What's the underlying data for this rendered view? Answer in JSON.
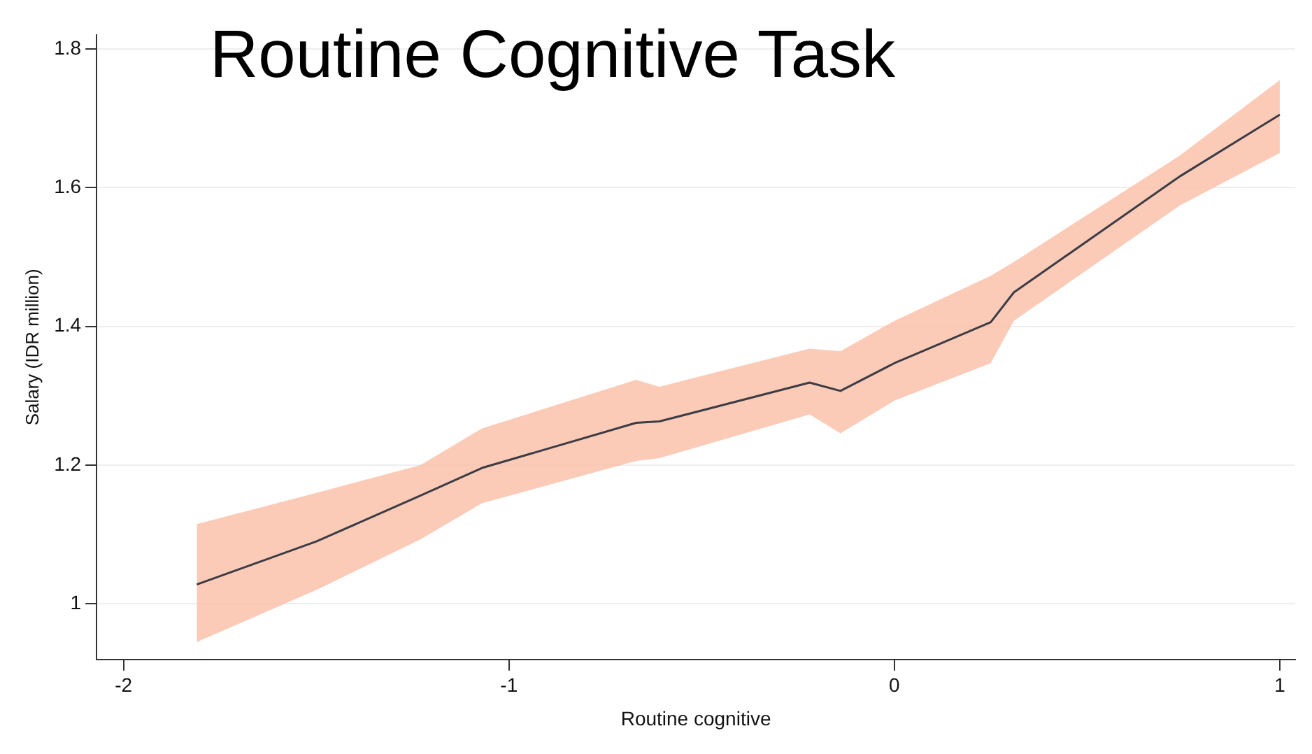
{
  "chart_data": {
    "type": "line",
    "title": "Routine Cognitive Task",
    "xlabel": "Routine cognitive",
    "ylabel": "Salary (IDR million)",
    "x": [
      -1.81,
      -1.5,
      -1.23,
      -1.07,
      -0.67,
      -0.61,
      -0.22,
      -0.14,
      0,
      0.25,
      0.31,
      0.74,
      1.0
    ],
    "series": [
      {
        "color": "#3c3c46",
        "values": [
          1.028,
          1.09,
          1.156,
          1.196,
          1.261,
          1.263,
          1.319,
          1.307,
          1.347,
          1.406,
          1.449,
          1.616,
          1.705
        ],
        "lower": [
          0.945,
          1.02,
          1.093,
          1.145,
          1.206,
          1.21,
          1.273,
          1.246,
          1.293,
          1.347,
          1.408,
          1.574,
          1.65
        ],
        "upper": [
          1.115,
          1.16,
          1.2,
          1.253,
          1.323,
          1.313,
          1.368,
          1.364,
          1.408,
          1.473,
          1.493,
          1.646,
          1.755
        ]
      }
    ],
    "xlim": [
      -2.07,
      1.04
    ],
    "ylim": [
      0.92,
      1.82
    ],
    "xticks": [
      -2,
      -1,
      0,
      1
    ],
    "yticks": [
      1,
      1.2,
      1.4,
      1.6,
      1.8
    ],
    "grid": "y",
    "legend": false,
    "marker": "none",
    "line_style": "solid"
  }
}
